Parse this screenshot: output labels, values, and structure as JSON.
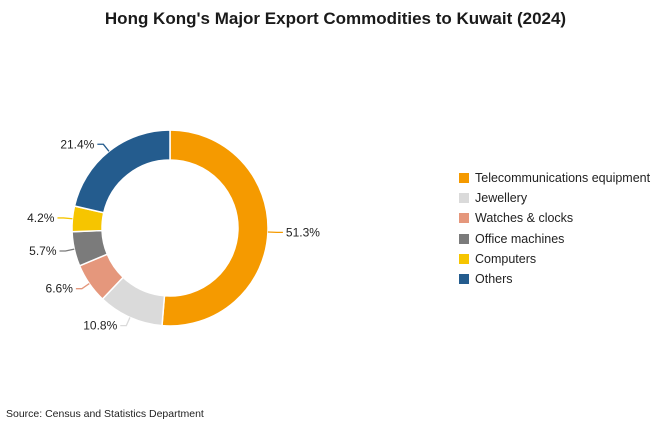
{
  "chart_data": {
    "type": "pie",
    "donut": true,
    "title": "Hong Kong's Major Export Commodities to Kuwait (2024)",
    "slices": [
      {
        "label": "Telecommunications equipment",
        "value": 51.3,
        "value_label": "51.3%",
        "color": "#F59A00"
      },
      {
        "label": "Jewellery",
        "value": 10.8,
        "value_label": "10.8%",
        "color": "#DADADA"
      },
      {
        "label": "Watches & clocks",
        "value": 6.6,
        "value_label": "6.6%",
        "color": "#E5977C"
      },
      {
        "label": "Office machines",
        "value": 5.7,
        "value_label": "5.7%",
        "color": "#7B7B7B"
      },
      {
        "label": "Computers",
        "value": 4.2,
        "value_label": "4.2%",
        "color": "#F6C500"
      },
      {
        "label": "Others",
        "value": 21.4,
        "value_label": "21.4%",
        "color": "#245C8E"
      }
    ],
    "legend_position": "right",
    "source": "Source: Census and Statistics Department"
  }
}
